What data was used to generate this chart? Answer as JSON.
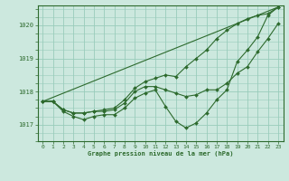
{
  "xlabel_label": "Graphe pression niveau de la mer (hPa)",
  "xlim": [
    -0.5,
    23.5
  ],
  "ylim": [
    1016.5,
    1020.6
  ],
  "yticks": [
    1017,
    1018,
    1019,
    1020
  ],
  "xticks": [
    0,
    1,
    2,
    3,
    4,
    5,
    6,
    7,
    8,
    9,
    10,
    11,
    12,
    13,
    14,
    15,
    16,
    17,
    18,
    19,
    20,
    21,
    22,
    23
  ],
  "background_color": "#cce8de",
  "grid_color": "#99ccbb",
  "line_color": "#2d6a2d",
  "line1_x": [
    0,
    1,
    2,
    3,
    4,
    5,
    6,
    7,
    8,
    9,
    10,
    11,
    12,
    13,
    14,
    15,
    16,
    17,
    18,
    19,
    20,
    21,
    22,
    23
  ],
  "line1": [
    1017.7,
    1017.7,
    1017.4,
    1017.25,
    1017.15,
    1017.25,
    1017.3,
    1017.3,
    1017.5,
    1017.8,
    1017.95,
    1018.05,
    1017.55,
    1017.1,
    1016.9,
    1017.05,
    1017.35,
    1017.75,
    1018.05,
    1018.9,
    1019.25,
    1019.65,
    1020.3,
    1020.55
  ],
  "line2_x": [
    0,
    1,
    2,
    3,
    4,
    5,
    6,
    7,
    8,
    9,
    10,
    11,
    12,
    13,
    14,
    15,
    16,
    17,
    18,
    19,
    20,
    21,
    22,
    23
  ],
  "line2": [
    1017.7,
    1017.7,
    1017.45,
    1017.35,
    1017.35,
    1017.4,
    1017.4,
    1017.45,
    1017.65,
    1018.0,
    1018.15,
    1018.15,
    1018.05,
    1017.95,
    1017.85,
    1017.9,
    1018.05,
    1018.05,
    1018.25,
    1018.55,
    1018.75,
    1019.2,
    1019.6,
    1020.05
  ],
  "line3_x": [
    0,
    1,
    2,
    3,
    4,
    5,
    6,
    7,
    8,
    9,
    10,
    11,
    12,
    13,
    14,
    15,
    16,
    17,
    18,
    19,
    20,
    21,
    22,
    23
  ],
  "line3": [
    1017.7,
    1017.7,
    1017.45,
    1017.35,
    1017.35,
    1017.4,
    1017.45,
    1017.5,
    1017.75,
    1018.1,
    1018.3,
    1018.4,
    1018.5,
    1018.45,
    1018.75,
    1019.0,
    1019.25,
    1019.6,
    1019.85,
    1020.05,
    1020.2,
    1020.3,
    1020.35,
    1020.55
  ],
  "line4_x": [
    0,
    23
  ],
  "line4": [
    1017.7,
    1020.55
  ],
  "marker": "D",
  "markersize": 2.0,
  "linewidth": 0.8,
  "label_fontsize": 5.0,
  "tick_fontsize": 4.5
}
